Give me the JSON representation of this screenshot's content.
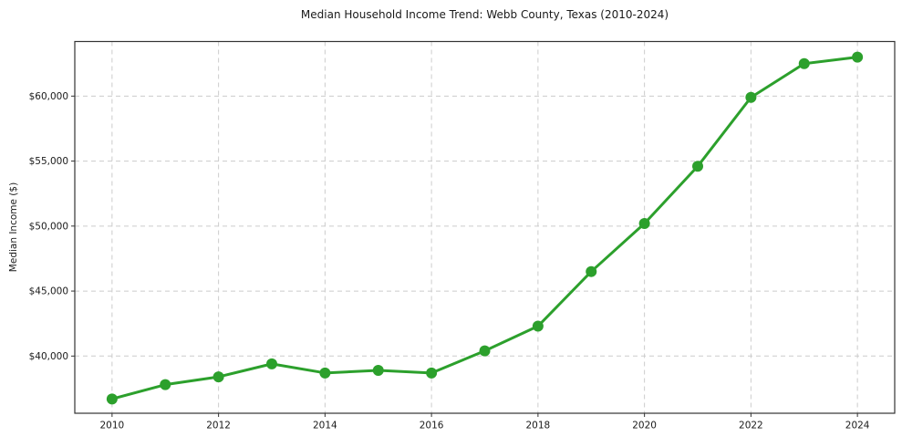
{
  "chart_data": {
    "type": "line",
    "title": "Median Household Income Trend: Webb County, Texas (2010-2024)",
    "ylabel": "Median Income ($)",
    "xlabel": "",
    "x": [
      2010,
      2011,
      2012,
      2013,
      2014,
      2015,
      2016,
      2017,
      2018,
      2019,
      2020,
      2021,
      2022,
      2023,
      2024
    ],
    "values": [
      36700,
      37800,
      38400,
      39400,
      38700,
      38900,
      38700,
      40400,
      42300,
      46500,
      50200,
      54600,
      59900,
      62500,
      63000
    ],
    "series_name": "Median Household Income",
    "xlim": [
      2009.3,
      2024.7
    ],
    "ylim": [
      35600,
      64200
    ],
    "xticks": [
      2010,
      2012,
      2014,
      2016,
      2018,
      2020,
      2022,
      2024
    ],
    "xtick_labels": [
      "2010",
      "2012",
      "2014",
      "2016",
      "2018",
      "2020",
      "2022",
      "2024"
    ],
    "yticks": [
      40000,
      45000,
      50000,
      55000,
      60000
    ],
    "ytick_labels": [
      "$40,000",
      "$45,000",
      "$50,000",
      "$55,000",
      "$60,000"
    ],
    "grid": "dashed",
    "legend_position": "none",
    "colors": {
      "line": "#2ca02c",
      "marker": "#2ca02c",
      "grid": "#cccccc",
      "spine": "#333333",
      "tick": "#333333",
      "text": "#1a1a1a",
      "background": "#ffffff"
    },
    "style": {
      "line_width": 3,
      "marker_radius": 6,
      "tick_length": 4
    }
  }
}
